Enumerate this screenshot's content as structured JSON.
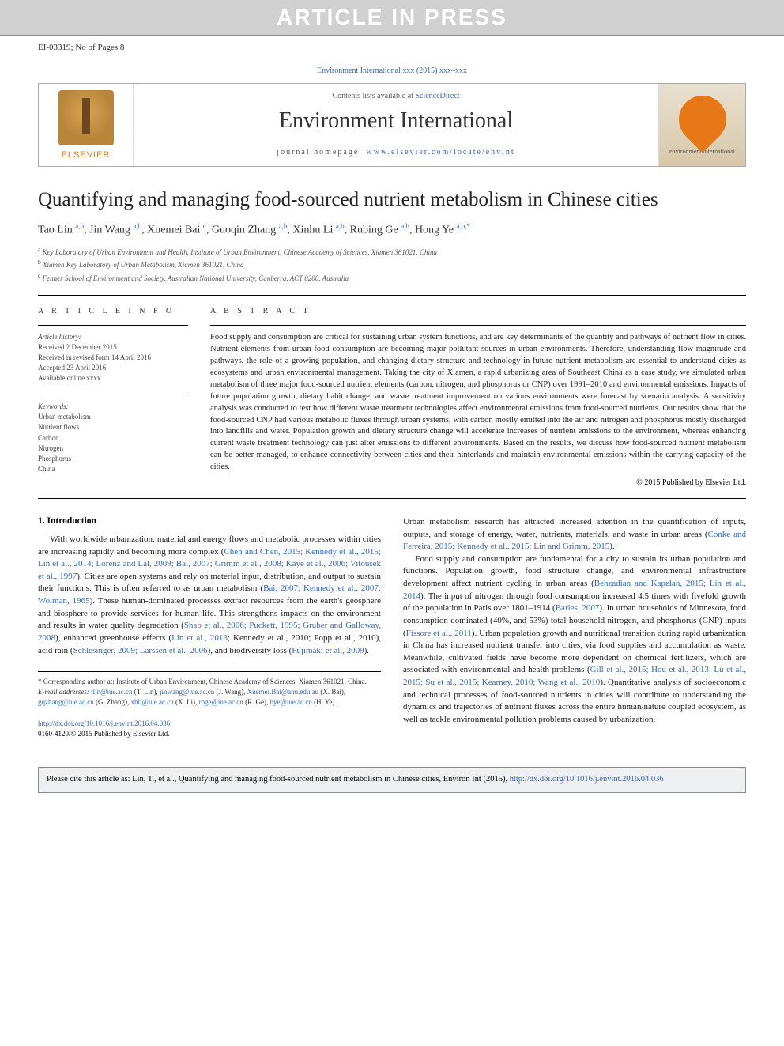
{
  "banner": {
    "text": "ARTICLE IN PRESS"
  },
  "doc_id": "EI-03319; No of Pages 8",
  "journal_ref": "Environment International xxx (2015) xxx–xxx",
  "masthead": {
    "contents_prefix": "Contents lists available at ",
    "contents_link": "ScienceDirect",
    "journal_name": "Environment International",
    "homepage_prefix": "journal homepage: ",
    "homepage_url": "www.elsevier.com/locate/envint",
    "publisher": "ELSEVIER",
    "cover_label": "environment international"
  },
  "article": {
    "title": "Quantifying and managing food-sourced nutrient metabolism in Chinese cities",
    "authors_html": "Tao Lin <sup>a,b</sup>, Jin Wang <sup>a,b</sup>, Xuemei Bai <sup>c</sup>, Guoqin Zhang <sup>a,b</sup>, Xinhu Li <sup>a,b</sup>, Rubing Ge <sup>a,b</sup>, Hong Ye <sup>a,b,*</sup>",
    "affiliations": [
      {
        "key": "a",
        "text": "Key Laboratory of Urban Environment and Health, Institute of Urban Environment, Chinese Academy of Sciences, Xiamen 361021, China"
      },
      {
        "key": "b",
        "text": "Xiamen Key Laboratory of Urban Metabolism, Xiamen 361021, China"
      },
      {
        "key": "c",
        "text": "Fenner School of Environment and Society, Australian National University, Canberra, ACT 0200, Australia"
      }
    ]
  },
  "info": {
    "heading": "A R T I C L E   I N F O",
    "history_label": "Article history:",
    "history": [
      "Received 2 December 2015",
      "Received in revised form 14 April 2016",
      "Accepted 23 April 2016",
      "Available online xxxx"
    ],
    "keywords_label": "Keywords:",
    "keywords": [
      "Urban metabolism",
      "Nutrient flows",
      "Carbon",
      "Nitrogen",
      "Phosphorus",
      "China"
    ]
  },
  "abstract": {
    "heading": "A B S T R A C T",
    "text": "Food supply and consumption are critical for sustaining urban system functions, and are key determinants of the quantity and pathways of nutrient flow in cities. Nutrient elements from urban food consumption are becoming major pollutant sources in urban environments. Therefore, understanding flow magnitude and pathways, the role of a growing population, and changing dietary structure and technology in future nutrient metabolism are essential to understand cities as ecosystems and urban environmental management. Taking the city of Xiamen, a rapid urbanizing area of Southeast China as a case study, we simulated urban metabolism of three major food-sourced nutrient elements (carbon, nitrogen, and phosphorus or CNP) over 1991–2010 and environmental emissions. Impacts of future population growth, dietary habit change, and waste treatment improvement on various environments were forecast by scenario analysis. A sensitivity analysis was conducted to test how different waste treatment technologies affect environmental emissions from food-sourced nutrients. Our results show that the food-sourced CNP had various metabolic fluxes through urban systems, with carbon mostly emitted into the air and nitrogen and phosphorus mostly discharged into landfills and water. Population growth and dietary structure change will accelerate increases of nutrient emissions to the environment, whereas enhancing current waste treatment technology can just alter emissions to different environments. Based on the results, we discuss how food-sourced nutrient metabolism can be better managed, to enhance connectivity between cities and their hinterlands and maintain environmental emissions within the carrying capacity of the cities.",
    "copyright": "© 2015 Published by Elsevier Ltd."
  },
  "body": {
    "section1_head": "1. Introduction",
    "col1_p1_a": "With worldwide urbanization, material and energy flows and metabolic processes within cities are increasing rapidly and becoming more complex (",
    "col1_p1_link1": "Chen and Chen, 2015; Kennedy et al., 2015; Lin et al., 2014; Lorenz and Lal, 2009; Bai, 2007; Grimm et al., 2008; Kaye et al., 2006; Vitousek et al., 1997",
    "col1_p1_b": "). Cities are open systems and rely on material input, distribution, and output to sustain their functions. This is often referred to as urban metabolism (",
    "col1_p1_link2": "Bai, 2007; Kennedy et al., 2007; Wolman, 1965",
    "col1_p1_c": "). These human-dominated processes extract resources from the earth's geosphere and biosphere to provide services for human life. This strengthens impacts on the environment and results in water quality degradation (",
    "col1_p1_link3": "Shao et al., 2006; Puckett, 1995; Gruber and Galloway, 2008",
    "col1_p1_d": "), enhanced greenhouse effects (",
    "col1_p1_link4": "Lin et al., 2013",
    "col1_p1_e": "; Kennedy et al., 2010; Popp et al., 2010), acid rain (",
    "col1_p1_link5": "Schlesinger, 2009; Larssen et al., 2006",
    "col1_p1_f": "), and biodiversity loss (",
    "col1_p1_link6": "Fujimaki et al., 2009",
    "col1_p1_g": ").",
    "col2_p1_a": "Urban metabolism research has attracted increased attention in the quantification of inputs, outputs, and storage of energy, water, nutrients, materials, and waste in urban areas (",
    "col2_p1_link1": "Conke and Ferreira, 2015; Kennedy et al., 2015; Lin and Grimm, 2015",
    "col2_p1_b": ").",
    "col2_p2_a": "Food supply and consumption are fundamental for a city to sustain its urban population and functions. Population growth, food structure change, and environmental infrastructure development affect nutrient cycling in urban areas (",
    "col2_p2_link1": "Behzadian and Kapelan, 2015; Lin et al., 2014",
    "col2_p2_b": "). The input of nitrogen through food consumption increased 4.5 times with fivefold growth of the population in Paris over 1801–1914 (",
    "col2_p2_link2": "Barles, 2007",
    "col2_p2_c": "). In urban households of Minnesota, food consumption dominated (40%, and 53%) total household nitrogen, and phosphorus (CNP) inputs (",
    "col2_p2_link3": "Fissore et al., 2011",
    "col2_p2_d": "). Urban population growth and nutritional transition during rapid urbanization in China has increased nutrient transfer into cities, via food supplies and accumulation as waste. Meanwhile, cultivated fields have become more dependent on chemical fertilizers, which are associated with environmental and health problems (",
    "col2_p2_link4": "Gill et al., 2015; Hou et al., 2013; Lu et al., 2015; Su et al., 2015; Kearney, 2010; Wang et al., 2010",
    "col2_p2_e": "). Quantitative analysis of socioeconomic and technical processes of food-sourced nutrients in cities will contribute to understanding the dynamics and trajectories of nutrient fluxes across the entire human/nature coupled ecosystem, as well as tackle environmental pollution problems caused by urbanization."
  },
  "footnotes": {
    "corr": "* Corresponding author at: Institute of Urban Environment, Chinese Academy of Sciences, Xiamen 361021, China.",
    "email_label": "E-mail addresses:",
    "emails": [
      {
        "addr": "tlin@iue.ac.cn",
        "who": "(T. Lin)"
      },
      {
        "addr": "jinwang@iue.ac.cn",
        "who": "(J. Wang)"
      },
      {
        "addr": "Xuemei.Bai@anu.edu.au",
        "who": "(X. Bai)"
      },
      {
        "addr": "gqzhang@iue.ac.cn",
        "who": "(G. Zhang)"
      },
      {
        "addr": "xhli@iue.ac.cn",
        "who": "(X. Li)"
      },
      {
        "addr": "rbge@iue.ac.cn",
        "who": "(R. Ge)"
      },
      {
        "addr": "hye@iue.ac.cn",
        "who": "(H. Ye)."
      }
    ]
  },
  "doi": {
    "url": "http://dx.doi.org/10.1016/j.envint.2016.04.036",
    "issn_line": "0160-4120/© 2015 Published by Elsevier Ltd."
  },
  "cite_box": {
    "prefix": "Please cite this article as: Lin, T., et al., Quantifying and managing food-sourced nutrient metabolism in Chinese cities, Environ Int (2015), ",
    "url": "http://dx.doi.org/10.1016/j.envint.2016.04.036"
  },
  "colors": {
    "link": "#3366cc",
    "banner_bg": "#d0d0d0",
    "orange": "#e67817"
  }
}
